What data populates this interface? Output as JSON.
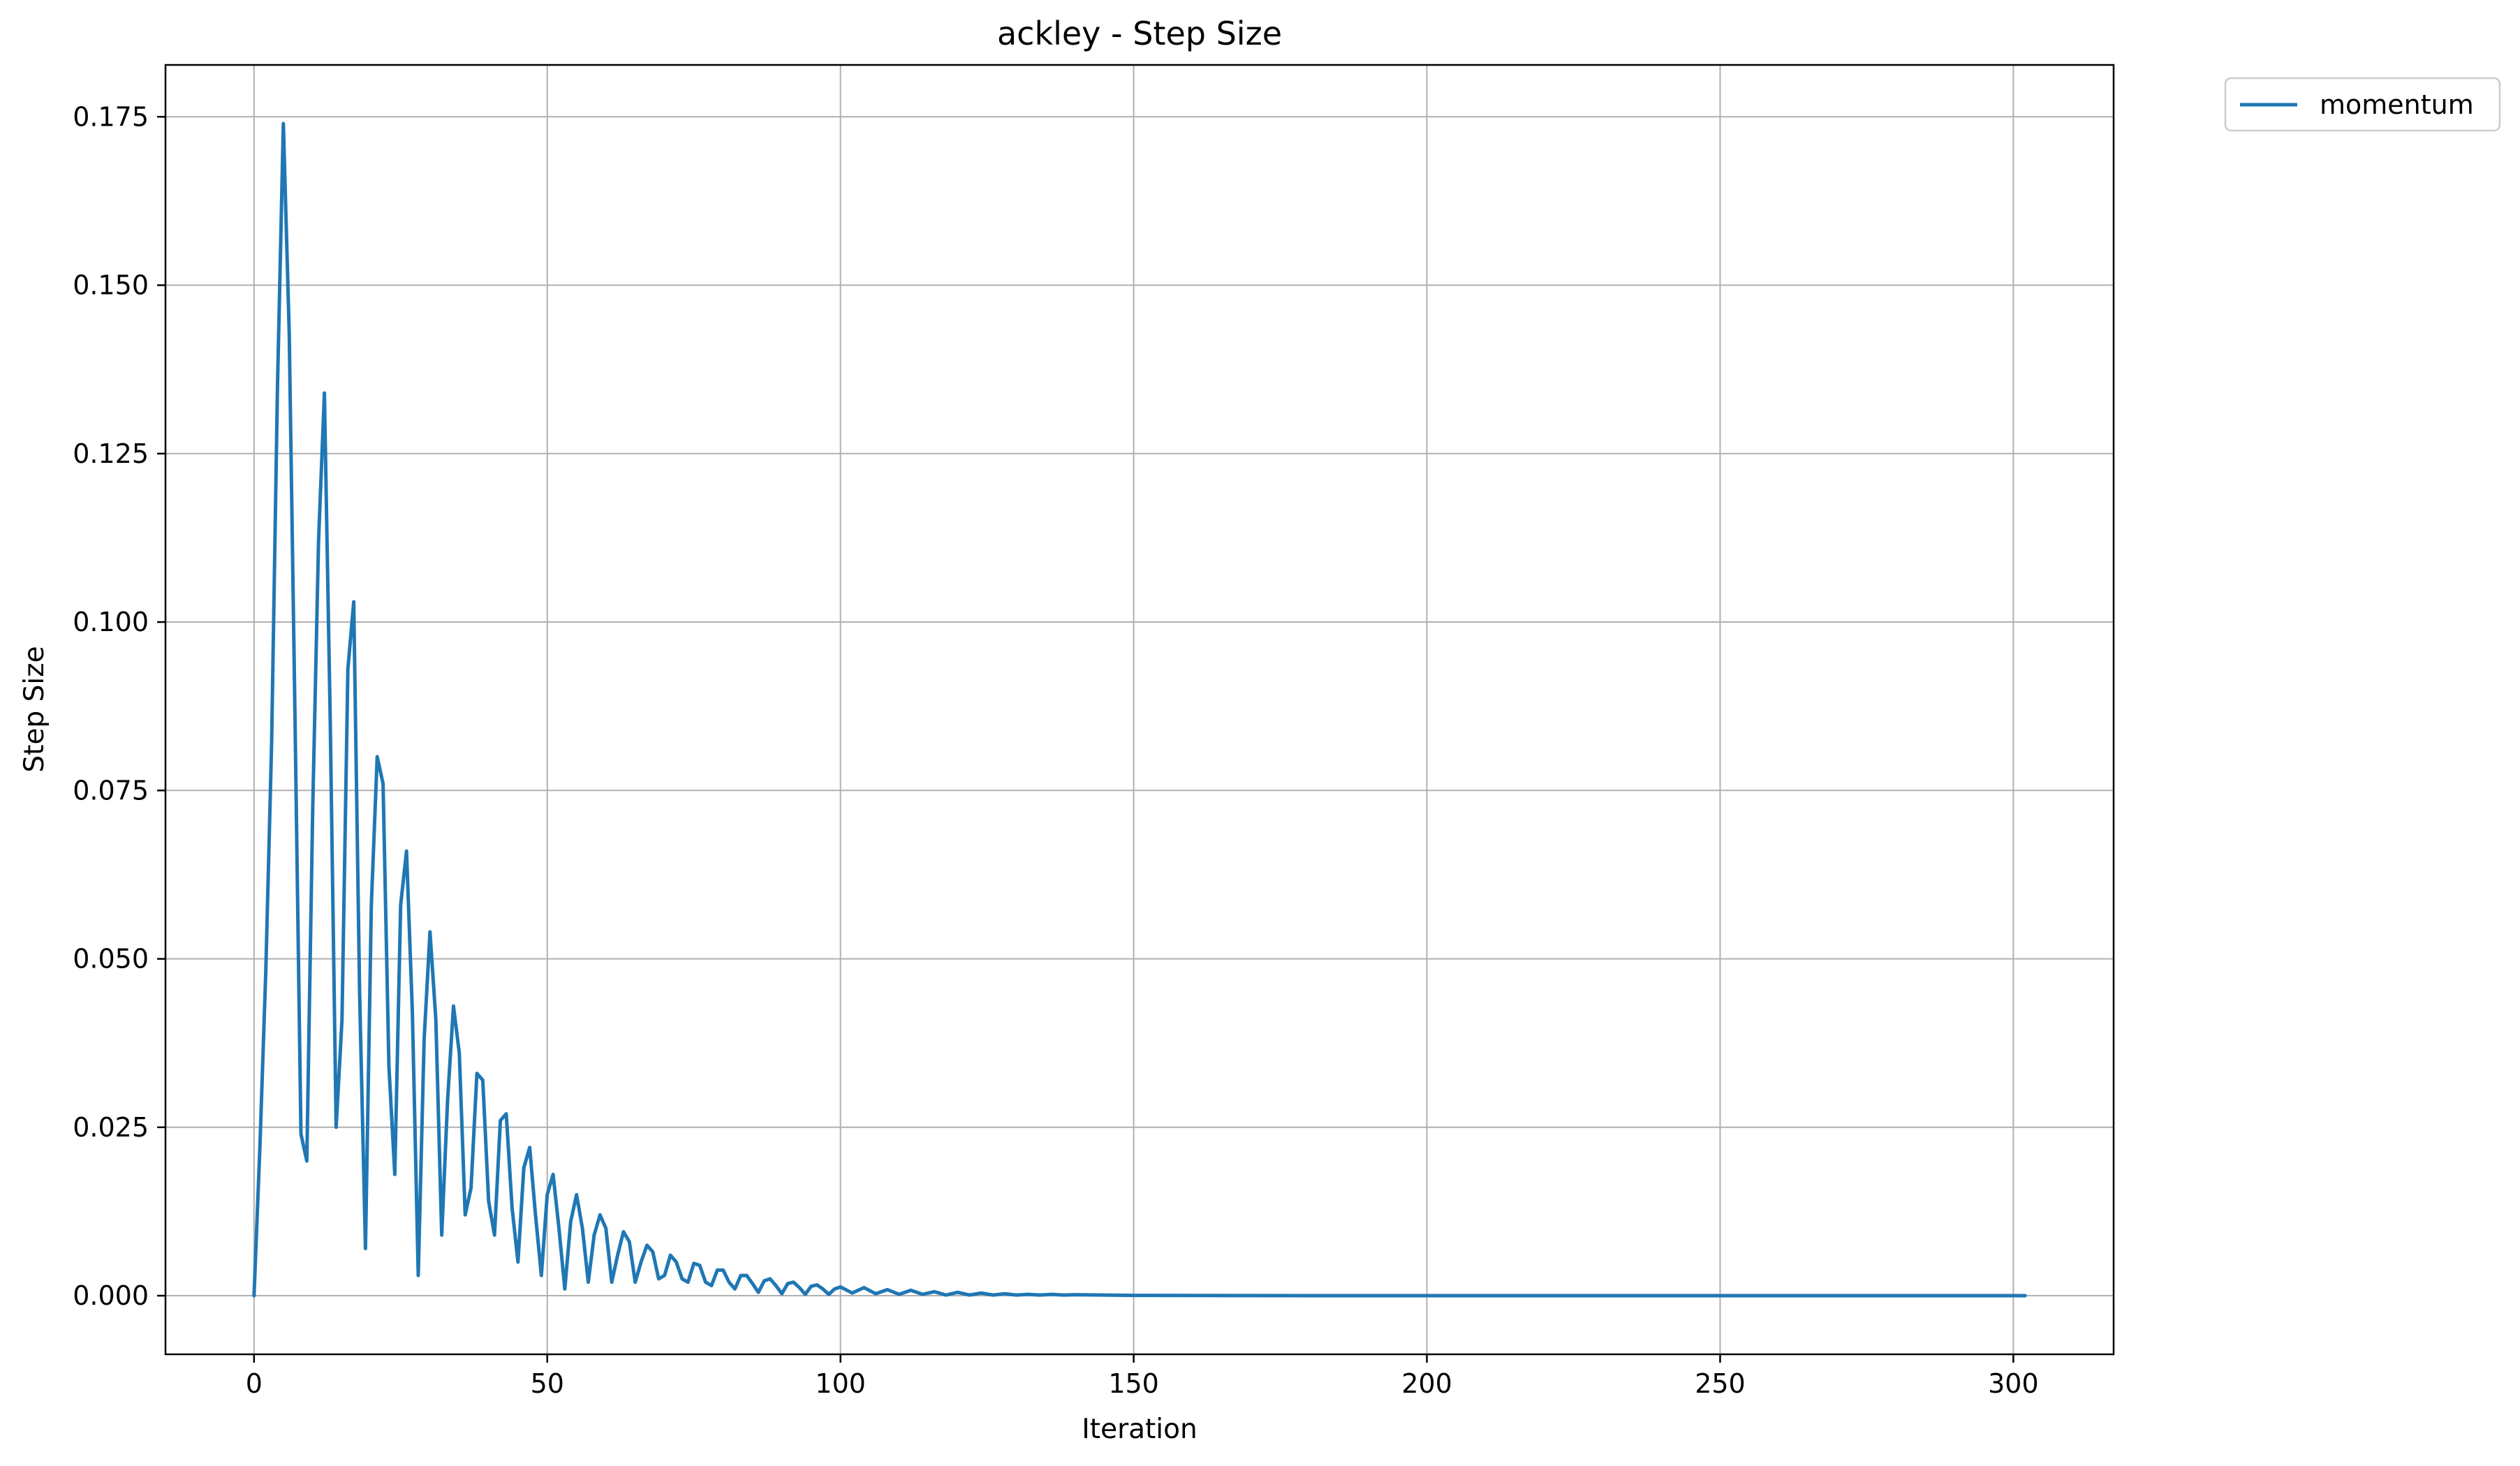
{
  "chart_data": {
    "type": "line",
    "title": "ackley - Step Size",
    "xlabel": "Iteration",
    "ylabel": "Step Size",
    "xlim": [
      -15.1,
      317.1
    ],
    "ylim": [
      -0.0087,
      0.1827
    ],
    "xticks": [
      0,
      50,
      100,
      150,
      200,
      250,
      300
    ],
    "xtick_labels": [
      "0",
      "50",
      "100",
      "150",
      "200",
      "250",
      "300"
    ],
    "yticks": [
      0.0,
      0.025,
      0.05,
      0.075,
      0.1,
      0.125,
      0.15,
      0.175
    ],
    "ytick_labels": [
      "0.000",
      "0.025",
      "0.050",
      "0.075",
      "0.100",
      "0.125",
      "0.150",
      "0.175"
    ],
    "grid": true,
    "legend": {
      "placement": "outside-top-right",
      "entries": [
        "momentum"
      ]
    },
    "series": [
      {
        "name": "momentum",
        "color": "#1f77b4",
        "x": [
          0,
          1,
          2,
          3,
          4,
          5,
          6,
          7,
          8,
          9,
          10,
          11,
          12,
          13,
          14,
          15,
          16,
          17,
          18,
          19,
          20,
          21,
          22,
          23,
          24,
          25,
          26,
          27,
          28,
          29,
          30,
          31,
          32,
          33,
          34,
          35,
          36,
          37,
          38,
          39,
          40,
          41,
          42,
          43,
          44,
          45,
          46,
          47,
          48,
          49,
          50,
          51,
          52,
          53,
          54,
          55,
          56,
          57,
          58,
          59,
          60,
          61,
          62,
          63,
          64,
          65,
          66,
          67,
          68,
          69,
          70,
          71,
          72,
          73,
          74,
          75,
          76,
          77,
          78,
          79,
          80,
          81,
          82,
          83,
          84,
          85,
          86,
          87,
          88,
          89,
          90,
          91,
          92,
          93,
          94,
          95,
          96,
          97,
          98,
          99,
          100,
          102,
          104,
          106,
          108,
          110,
          112,
          114,
          116,
          118,
          120,
          122,
          124,
          126,
          128,
          130,
          132,
          134,
          136,
          138,
          140,
          145,
          150,
          160,
          170,
          180,
          200,
          250,
          302
        ],
        "y": [
          0.0,
          0.022,
          0.048,
          0.082,
          0.135,
          0.174,
          0.143,
          0.085,
          0.024,
          0.02,
          0.072,
          0.112,
          0.134,
          0.085,
          0.025,
          0.041,
          0.093,
          0.103,
          0.045,
          0.007,
          0.058,
          0.08,
          0.076,
          0.034,
          0.018,
          0.058,
          0.066,
          0.042,
          0.003,
          0.038,
          0.054,
          0.041,
          0.009,
          0.029,
          0.043,
          0.036,
          0.012,
          0.016,
          0.033,
          0.032,
          0.014,
          0.009,
          0.026,
          0.027,
          0.013,
          0.005,
          0.019,
          0.022,
          0.012,
          0.003,
          0.015,
          0.018,
          0.01,
          0.001,
          0.011,
          0.015,
          0.01,
          0.002,
          0.009,
          0.012,
          0.01,
          0.002,
          0.006,
          0.0095,
          0.008,
          0.002,
          0.005,
          0.0075,
          0.0065,
          0.0025,
          0.003,
          0.006,
          0.005,
          0.0025,
          0.002,
          0.0048,
          0.0045,
          0.002,
          0.0015,
          0.0038,
          0.0038,
          0.002,
          0.001,
          0.003,
          0.003,
          0.0018,
          0.0005,
          0.0022,
          0.0025,
          0.0015,
          0.0003,
          0.0018,
          0.002,
          0.0012,
          0.0002,
          0.0014,
          0.0016,
          0.001,
          0.0002,
          0.001,
          0.0013,
          0.0004,
          0.0012,
          0.0003,
          0.0009,
          0.0002,
          0.0008,
          0.0002,
          0.0006,
          0.0001,
          0.0005,
          0.0001,
          0.0004,
          0.0001,
          0.0003,
          0.0001,
          0.0002,
          0.0001,
          0.0002,
          0.0001,
          0.00015,
          0.0001,
          5e-05,
          3e-05,
          1e-05,
          0.0,
          0.0,
          0.0,
          0.0
        ]
      }
    ]
  }
}
